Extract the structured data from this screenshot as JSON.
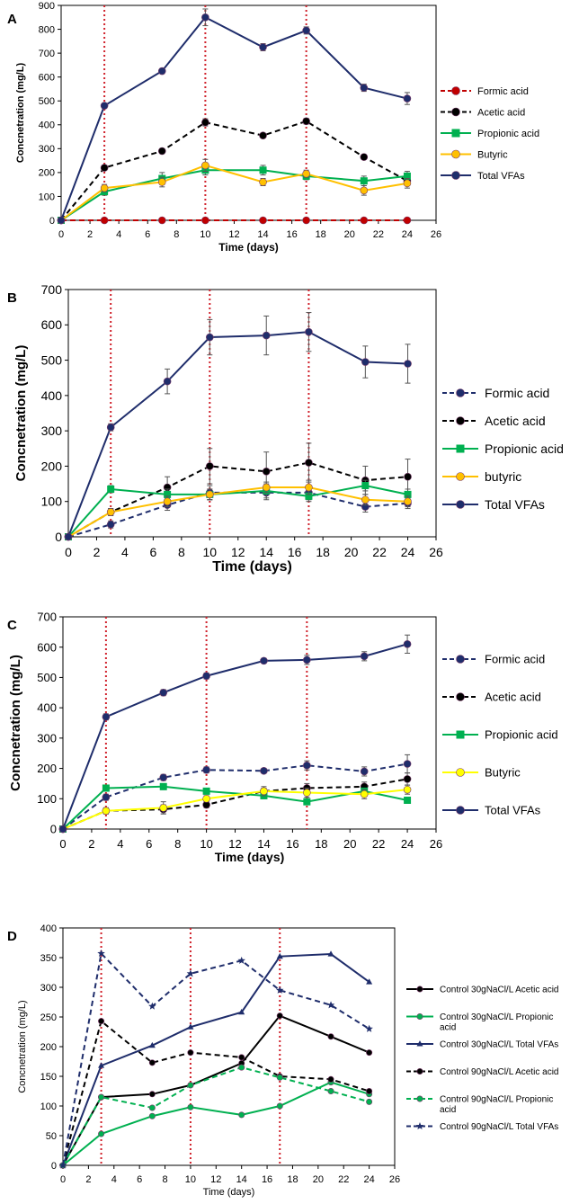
{
  "chart_data": [
    {
      "type": "line",
      "panel": "A",
      "title": "",
      "xlabel": "Time (days)",
      "ylabel": "Concnetration (mg/L)",
      "xlim": [
        0,
        26
      ],
      "ylim": [
        0,
        900
      ],
      "xticks": [
        0,
        2,
        4,
        6,
        8,
        10,
        12,
        14,
        16,
        18,
        20,
        22,
        24,
        26
      ],
      "yticks": [
        0,
        100,
        200,
        300,
        400,
        500,
        600,
        700,
        800,
        900
      ],
      "vlines": [
        3,
        10,
        17
      ],
      "legend_position": "right",
      "series": [
        {
          "name": "Formic acid",
          "color": "#c00000",
          "dash": true,
          "marker": "circle",
          "x": [
            0,
            3,
            7,
            10,
            14,
            17,
            21,
            24
          ],
          "values": [
            0,
            0,
            0,
            0,
            0,
            0,
            0,
            0
          ],
          "err": [
            0,
            0,
            0,
            0,
            0,
            0,
            0,
            0
          ]
        },
        {
          "name": "Acetic acid",
          "color": "#000000",
          "dash": true,
          "marker": "circle",
          "x": [
            0,
            3,
            7,
            10,
            14,
            17,
            21,
            24
          ],
          "values": [
            0,
            220,
            290,
            410,
            355,
            415,
            265,
            165
          ],
          "err": [
            0,
            10,
            10,
            15,
            10,
            12,
            10,
            10
          ]
        },
        {
          "name": "Propionic acid",
          "color": "#00b050",
          "dash": false,
          "marker": "square",
          "x": [
            0,
            3,
            7,
            10,
            14,
            17,
            21,
            24
          ],
          "values": [
            0,
            120,
            175,
            210,
            210,
            185,
            165,
            185
          ],
          "err": [
            0,
            15,
            25,
            20,
            20,
            15,
            20,
            20
          ]
        },
        {
          "name": "Butyric",
          "color": "#ffc000",
          "dash": false,
          "marker": "circle",
          "x": [
            0,
            3,
            7,
            10,
            14,
            17,
            21,
            24
          ],
          "values": [
            0,
            135,
            160,
            230,
            160,
            195,
            125,
            155
          ],
          "err": [
            0,
            15,
            20,
            25,
            15,
            15,
            20,
            20
          ]
        },
        {
          "name": "Total VFAs",
          "color": "#1f2d6b",
          "dash": false,
          "marker": "circle",
          "x": [
            0,
            3,
            7,
            10,
            14,
            17,
            21,
            24
          ],
          "values": [
            0,
            480,
            625,
            850,
            725,
            795,
            555,
            510
          ],
          "err": [
            0,
            10,
            10,
            35,
            15,
            15,
            15,
            25
          ]
        }
      ]
    },
    {
      "type": "line",
      "panel": "B",
      "title": "",
      "xlabel": "Time (days)",
      "ylabel": "Concnetration (mg/L)",
      "xlim": [
        0,
        26
      ],
      "ylim": [
        0,
        700
      ],
      "xticks": [
        0,
        2,
        4,
        6,
        8,
        10,
        12,
        14,
        16,
        18,
        20,
        22,
        24,
        26
      ],
      "yticks": [
        0,
        100,
        200,
        300,
        400,
        500,
        600,
        700
      ],
      "vlines": [
        3,
        10,
        17
      ],
      "legend_position": "right",
      "series": [
        {
          "name": "Formic acid",
          "color": "#1f2d6b",
          "dash": true,
          "marker": "circle",
          "x": [
            0,
            3,
            7,
            10,
            14,
            17,
            21,
            24
          ],
          "values": [
            0,
            35,
            90,
            125,
            125,
            125,
            85,
            95
          ],
          "err": [
            0,
            10,
            15,
            20,
            20,
            20,
            15,
            15
          ]
        },
        {
          "name": "Acetic acid",
          "color": "#000000",
          "dash": true,
          "marker": "circle",
          "x": [
            0,
            3,
            7,
            10,
            14,
            17,
            21,
            24
          ],
          "values": [
            0,
            70,
            140,
            200,
            185,
            210,
            160,
            170
          ],
          "err": [
            0,
            10,
            30,
            50,
            55,
            55,
            40,
            50
          ]
        },
        {
          "name": "Propionic acid",
          "color": "#00b050",
          "dash": false,
          "marker": "square",
          "x": [
            0,
            3,
            7,
            10,
            14,
            17,
            21,
            24
          ],
          "values": [
            0,
            135,
            120,
            120,
            130,
            115,
            145,
            120
          ],
          "err": [
            0,
            10,
            15,
            15,
            20,
            15,
            15,
            15
          ]
        },
        {
          "name": "butyric",
          "color": "#ffc000",
          "dash": false,
          "marker": "circle",
          "x": [
            0,
            3,
            7,
            10,
            14,
            17,
            21,
            24
          ],
          "values": [
            0,
            70,
            100,
            120,
            140,
            140,
            105,
            100
          ],
          "err": [
            0,
            10,
            15,
            15,
            15,
            20,
            15,
            15
          ]
        },
        {
          "name": "Total VFAs",
          "color": "#1f2d6b",
          "dash": false,
          "marker": "circle",
          "x": [
            0,
            3,
            7,
            10,
            14,
            17,
            21,
            24
          ],
          "values": [
            0,
            310,
            440,
            565,
            570,
            580,
            495,
            490
          ],
          "err": [
            0,
            10,
            35,
            50,
            55,
            55,
            45,
            55
          ]
        }
      ]
    },
    {
      "type": "line",
      "panel": "C",
      "title": "",
      "xlabel": "Time (days)",
      "ylabel": "Concnetration (mg/L)",
      "xlim": [
        0,
        26
      ],
      "ylim": [
        0,
        700
      ],
      "xticks": [
        0,
        2,
        4,
        6,
        8,
        10,
        12,
        14,
        16,
        18,
        20,
        22,
        24,
        26
      ],
      "yticks": [
        0,
        100,
        200,
        300,
        400,
        500,
        600,
        700
      ],
      "vlines": [
        3,
        10,
        17
      ],
      "legend_position": "right",
      "series": [
        {
          "name": "Formic acid",
          "color": "#1f2d6b",
          "dash": true,
          "marker": "circle",
          "x": [
            0,
            3,
            7,
            10,
            14,
            17,
            21,
            24
          ],
          "values": [
            0,
            105,
            170,
            195,
            192,
            210,
            190,
            215
          ],
          "err": [
            0,
            10,
            10,
            10,
            8,
            15,
            15,
            30
          ]
        },
        {
          "name": "Acetic acid",
          "color": "#000000",
          "dash": true,
          "marker": "circle",
          "x": [
            0,
            3,
            7,
            10,
            14,
            17,
            21,
            24
          ],
          "values": [
            0,
            60,
            65,
            80,
            125,
            135,
            140,
            165
          ],
          "err": [
            0,
            10,
            15,
            10,
            10,
            15,
            15,
            20
          ]
        },
        {
          "name": "Propionic acid",
          "color": "#00b050",
          "dash": false,
          "marker": "square",
          "x": [
            0,
            3,
            7,
            10,
            14,
            17,
            21,
            24
          ],
          "values": [
            0,
            135,
            140,
            125,
            110,
            90,
            125,
            95
          ],
          "err": [
            0,
            10,
            10,
            10,
            10,
            10,
            10,
            10
          ]
        },
        {
          "name": "Butyric",
          "color": "#ffff00",
          "dash": false,
          "marker": "circle",
          "x": [
            0,
            3,
            7,
            10,
            14,
            17,
            21,
            24
          ],
          "values": [
            0,
            60,
            70,
            100,
            125,
            120,
            115,
            130
          ],
          "err": [
            0,
            10,
            20,
            10,
            15,
            15,
            15,
            15
          ]
        },
        {
          "name": "Total VFAs",
          "color": "#1f2d6b",
          "dash": false,
          "marker": "circle",
          "x": [
            0,
            3,
            7,
            10,
            14,
            17,
            21,
            24
          ],
          "values": [
            0,
            370,
            450,
            505,
            555,
            558,
            570,
            610
          ],
          "err": [
            0,
            10,
            10,
            10,
            8,
            15,
            15,
            30
          ]
        }
      ]
    },
    {
      "type": "line",
      "panel": "D",
      "title": "",
      "xlabel": "Time (days)",
      "ylabel": "Concnetration (mg/L)",
      "xlim": [
        0,
        26
      ],
      "ylim": [
        0,
        400
      ],
      "xticks": [
        0,
        2,
        4,
        6,
        8,
        10,
        12,
        14,
        16,
        18,
        20,
        22,
        24,
        26
      ],
      "yticks": [
        0,
        50,
        100,
        150,
        200,
        250,
        300,
        350,
        400
      ],
      "vlines": [
        3,
        10,
        17
      ],
      "legend_position": "right",
      "series": [
        {
          "name": "Control 30gNaCl/L Acetic acid",
          "color": "#000000",
          "dash": false,
          "marker": "circle",
          "x": [
            0,
            3,
            7,
            10,
            14,
            17,
            21,
            24
          ],
          "values": [
            0,
            115,
            120,
            135,
            172,
            252,
            217,
            190
          ],
          "err": [
            0,
            0,
            0,
            0,
            0,
            0,
            0,
            0
          ]
        },
        {
          "name": "Control 30gNaCl/L Propionic acid",
          "color": "#00b050",
          "dash": false,
          "marker": "circle",
          "x": [
            0,
            3,
            7,
            10,
            14,
            17,
            21,
            24
          ],
          "values": [
            0,
            53,
            83,
            98,
            85,
            100,
            140,
            120
          ],
          "err": [
            0,
            0,
            0,
            0,
            0,
            0,
            0,
            0
          ]
        },
        {
          "name": "Control 30gNaCl/L Total VFAs",
          "color": "#1f2d6b",
          "dash": false,
          "marker": "triangle",
          "x": [
            0,
            3,
            7,
            10,
            14,
            17,
            21,
            24
          ],
          "values": [
            0,
            168,
            202,
            233,
            258,
            352,
            356,
            309
          ],
          "err": [
            0,
            0,
            0,
            0,
            0,
            0,
            0,
            0
          ]
        },
        {
          "name": "Control 90gNaCl/L Acetic acid",
          "color": "#000000",
          "dash": true,
          "marker": "circle",
          "x": [
            0,
            3,
            7,
            10,
            14,
            17,
            21,
            24
          ],
          "values": [
            0,
            243,
            173,
            190,
            182,
            150,
            145,
            125
          ],
          "err": [
            0,
            0,
            0,
            0,
            0,
            0,
            0,
            0
          ]
        },
        {
          "name": "Control 90gNaCl/L Propionic acid",
          "color": "#00b050",
          "dash": true,
          "marker": "circle",
          "x": [
            0,
            3,
            7,
            10,
            14,
            17,
            21,
            24
          ],
          "values": [
            0,
            115,
            97,
            135,
            165,
            148,
            125,
            107
          ],
          "err": [
            0,
            0,
            0,
            0,
            0,
            0,
            0,
            0
          ]
        },
        {
          "name": "Control 90gNaCl/L Total VFAs",
          "color": "#1f2d6b",
          "dash": true,
          "marker": "star",
          "x": [
            0,
            3,
            7,
            10,
            14,
            17,
            21,
            24
          ],
          "values": [
            0,
            357,
            268,
            323,
            345,
            295,
            270,
            230
          ],
          "err": [
            0,
            0,
            0,
            0,
            0,
            0,
            0,
            0
          ]
        }
      ]
    }
  ]
}
